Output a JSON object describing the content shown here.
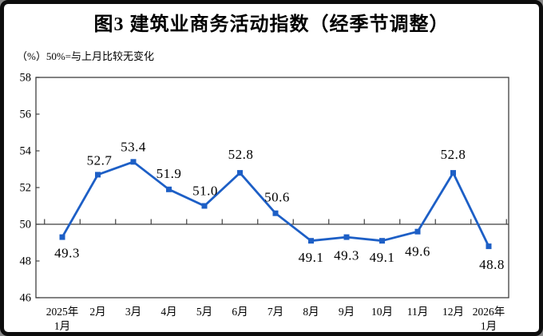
{
  "chart_data": {
    "type": "line",
    "title": "图3  建筑业商务活动指数（经季节调整）",
    "subtitle": "（%）50%=与上月比较无变化",
    "categories": [
      "2025年1月",
      "2月",
      "3月",
      "4月",
      "5月",
      "6月",
      "7月",
      "8月",
      "9月",
      "10月",
      "11月",
      "12月",
      "2026年1月"
    ],
    "category_label_lines": [
      [
        "2025年",
        "1月"
      ],
      [
        "2月"
      ],
      [
        "3月"
      ],
      [
        "4月"
      ],
      [
        "5月"
      ],
      [
        "6月"
      ],
      [
        "7月"
      ],
      [
        "8月"
      ],
      [
        "9月"
      ],
      [
        "10月"
      ],
      [
        "11月"
      ],
      [
        "12月"
      ],
      [
        "2026年",
        "1月"
      ]
    ],
    "series": [
      {
        "name": "建筑业商务活动指数",
        "values": [
          49.3,
          52.7,
          53.4,
          51.9,
          51.0,
          52.8,
          50.6,
          49.1,
          49.3,
          49.1,
          49.6,
          52.8,
          48.8
        ]
      }
    ],
    "data_labels": [
      "49.3",
      "52.7",
      "53.4",
      "51.9",
      "51.0",
      "52.8",
      "50.6",
      "49.1",
      "49.3",
      "49.1",
      "49.6",
      "52.8",
      "48.8"
    ],
    "label_placement": [
      "below",
      "above",
      "above",
      "above",
      "above",
      "above",
      "above",
      "below",
      "below",
      "below",
      "below",
      "above",
      "below"
    ],
    "ylim": [
      46,
      58
    ],
    "yticks": [
      58,
      56,
      54,
      52,
      50,
      48,
      46
    ],
    "reference_line_y": 50,
    "grid": false,
    "legend": "none",
    "line_color": "#1D5FC6",
    "marker_shape": "square",
    "axis_color": "#3F3F3F",
    "text_color": "#000000"
  }
}
